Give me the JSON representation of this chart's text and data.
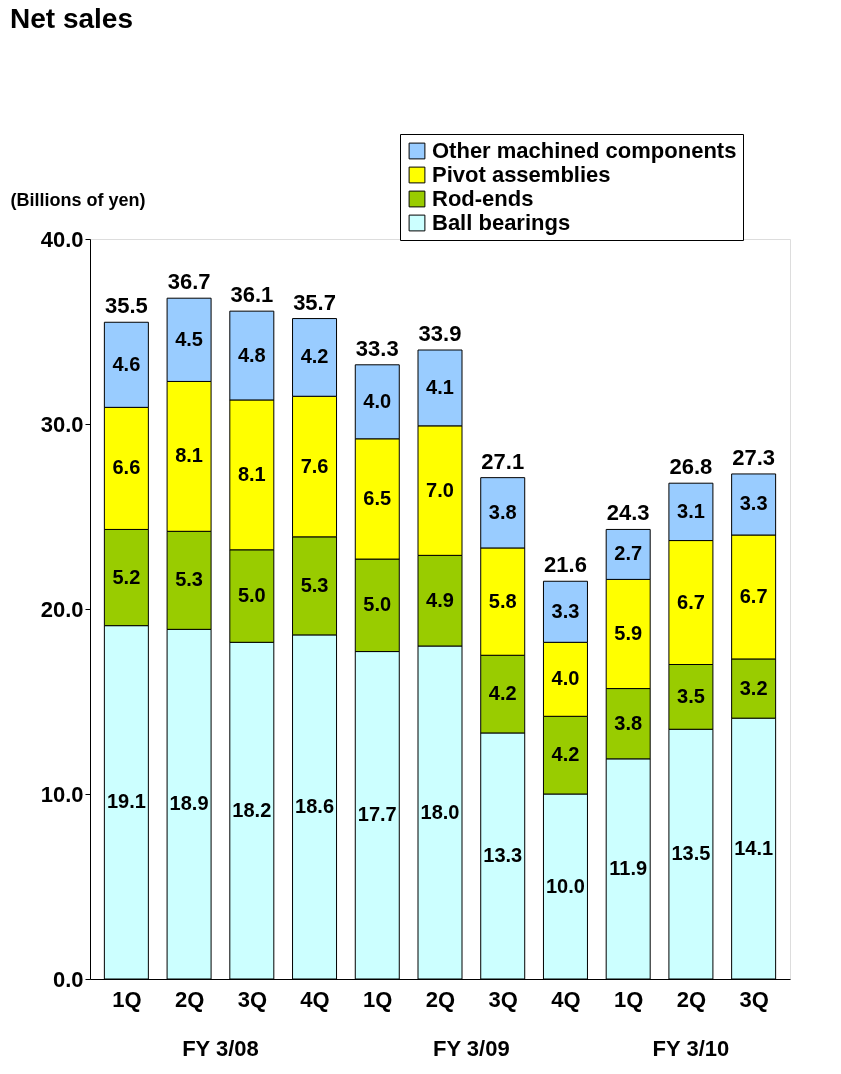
{
  "chart_data": {
    "type": "bar",
    "title": "Net sales",
    "ylabel": "(Billions of yen)",
    "categories": [
      "1Q",
      "2Q",
      "3Q",
      "4Q",
      "1Q",
      "2Q",
      "3Q",
      "4Q",
      "1Q",
      "2Q",
      "3Q"
    ],
    "stacked": true,
    "legend": "top right",
    "grid": false,
    "ylim": [
      0,
      40
    ],
    "yticks": [
      {
        "value": 0,
        "label": "0.0"
      },
      {
        "value": 10,
        "label": "10.0"
      },
      {
        "value": 20,
        "label": "20.0"
      },
      {
        "value": 30,
        "label": "30.0"
      },
      {
        "value": 40,
        "label": "40.0"
      }
    ],
    "series": [
      {
        "name": "Ball bearings",
        "color": "#ccffff",
        "values": [
          19.1,
          18.9,
          18.2,
          18.6,
          17.7,
          18.0,
          13.3,
          10.0,
          11.9,
          13.5,
          14.1
        ],
        "value_labels": [
          "19.1",
          "18.9",
          "18.2",
          "18.6",
          "17.7",
          "18.0",
          "13.3",
          "10.0",
          "11.9",
          "13.5",
          "14.1"
        ]
      },
      {
        "name": "Rod-ends",
        "color": "#99cc00",
        "values": [
          5.2,
          5.3,
          5.0,
          5.3,
          5.0,
          4.9,
          4.2,
          4.2,
          3.8,
          3.5,
          3.2
        ],
        "value_labels": [
          "5.2",
          "5.3",
          "5.0",
          "5.3",
          "5.0",
          "4.9",
          "4.2",
          "4.2",
          "3.8",
          "3.5",
          "3.2"
        ]
      },
      {
        "name": "Pivot assemblies",
        "color": "#ffff00",
        "values": [
          6.6,
          8.1,
          8.1,
          7.6,
          6.5,
          7.0,
          5.8,
          4.0,
          5.9,
          6.7,
          6.7
        ],
        "value_labels": [
          "6.6",
          "8.1",
          "8.1",
          "7.6",
          "6.5",
          "7.0",
          "5.8",
          "4.0",
          "5.9",
          "6.7",
          "6.7"
        ]
      },
      {
        "name": "Other machined components",
        "color": "#99ccff",
        "values": [
          4.6,
          4.5,
          4.8,
          4.2,
          4.0,
          4.1,
          3.8,
          3.3,
          2.7,
          3.1,
          3.3
        ],
        "value_labels": [
          "4.6",
          "4.5",
          "4.8",
          "4.2",
          "4.0",
          "4.1",
          "3.8",
          "3.3",
          "2.7",
          "3.1",
          "3.3"
        ]
      }
    ],
    "totals": [
      "35.5",
      "36.7",
      "36.1",
      "35.7",
      "33.3",
      "33.9",
      "27.1",
      "21.6",
      "24.3",
      "26.8",
      "27.3"
    ],
    "annotations": [
      "FY 3/08",
      "FY 3/09",
      "FY 3/10"
    ]
  }
}
